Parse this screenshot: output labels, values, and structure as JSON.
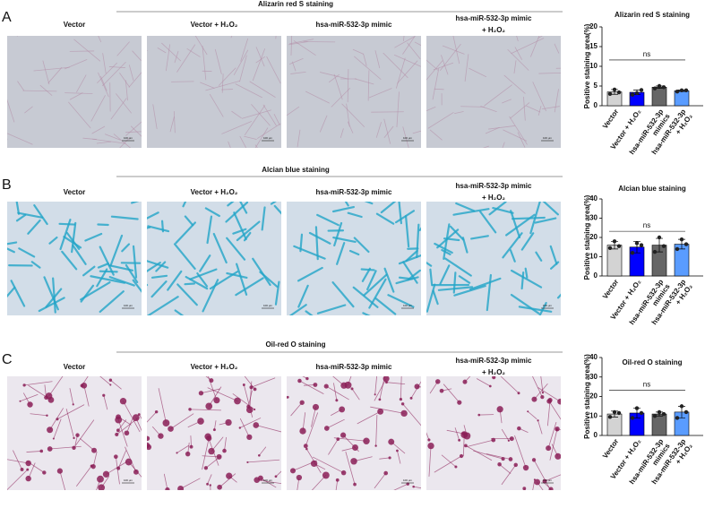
{
  "panels": [
    {
      "letter": "A",
      "title": "Alizarin red S staining",
      "columns": [
        "Vector",
        "Vector + H₂O₂",
        "hsa-miR-532-3p mimic",
        [
          "hsa-miR-532-3p mimic",
          "+ H₂O₂"
        ]
      ],
      "scale_bar": "100 μm"
    },
    {
      "letter": "B",
      "title": "Alcian blue staining",
      "columns": [
        "Vector",
        "Vector + H₂O₂",
        "hsa-miR-532-3p mimic",
        [
          "hsa-miR-532-3p mimic",
          "+ H₂O₂"
        ]
      ],
      "scale_bar": "100 μm"
    },
    {
      "letter": "C",
      "title": "Oil-red O staining",
      "columns": [
        "Vector",
        "Vector + H₂O₂",
        "hsa-miR-532-3p mimic",
        [
          "hsa-miR-532-3p mimic",
          "+ H₂O₂"
        ]
      ],
      "scale_bar": "100 μm"
    }
  ],
  "chart_data": [
    {
      "type": "bar",
      "title": "Alizarin red S staining",
      "ylabel": "Positive staining area(%)",
      "categories": [
        "Vector",
        "Vector + H₂O₂",
        [
          "hsa-miR-532-3p",
          "mimics"
        ],
        [
          "hsa-miR-532-3p",
          "+ H₂O₂"
        ]
      ],
      "colors": [
        "#d3d3d3",
        "#0000ff",
        "#666666",
        "#5a9cff"
      ],
      "values": [
        3.5,
        3.4,
        4.7,
        3.8
      ],
      "errors": [
        0.6,
        0.6,
        0.3,
        0.2
      ],
      "points": [
        [
          3,
          4.1,
          3.4
        ],
        [
          2.8,
          3.2,
          4
        ],
        [
          4.4,
          5,
          4.7
        ],
        [
          3.6,
          3.9,
          3.9
        ]
      ],
      "ylim": [
        0,
        20
      ],
      "yticks": [
        0,
        5,
        10,
        15,
        20
      ],
      "annotation": "ns"
    },
    {
      "type": "bar",
      "title": "Alcian blue staining",
      "ylabel": "Positive staining area(%)",
      "categories": [
        "Vector",
        "Vector + H₂O₂",
        [
          "hsa-miR-532-3p",
          "mimics"
        ],
        [
          "hsa-miR-532-3p",
          "+ H₂O₂"
        ]
      ],
      "colors": [
        "#d3d3d3",
        "#0000ff",
        "#666666",
        "#5a9cff"
      ],
      "values": [
        16,
        15,
        16,
        16.5
      ],
      "errors": [
        2,
        3,
        3.5,
        2.5
      ],
      "points": [
        [
          14.5,
          18,
          15.5
        ],
        [
          12,
          17,
          16
        ],
        [
          12.5,
          20,
          15.5
        ],
        [
          14,
          19,
          16.5
        ]
      ],
      "ylim": [
        0,
        40
      ],
      "yticks": [
        0,
        10,
        20,
        30,
        40
      ],
      "annotation": "ns"
    },
    {
      "type": "bar",
      "title": "Oil-red O staining",
      "ylabel": "Positive staining area(%)",
      "categories": [
        "Vector",
        "Vector + H₂O₂",
        [
          "hsa-miR-532-3p",
          "mimics"
        ],
        [
          "hsa-miR-532-3p",
          "+ H₂O₂"
        ]
      ],
      "colors": [
        "#d3d3d3",
        "#0000ff",
        "#666666",
        "#5a9cff"
      ],
      "values": [
        11,
        11.5,
        11,
        12
      ],
      "errors": [
        1.5,
        2.5,
        1,
        3
      ],
      "points": [
        [
          9.5,
          12,
          11.5
        ],
        [
          9,
          14,
          11.5
        ],
        [
          10,
          12,
          11
        ],
        [
          9,
          15,
          12
        ]
      ],
      "ylim": [
        0,
        40
      ],
      "yticks": [
        0,
        10,
        20,
        30,
        40
      ],
      "annotation": "ns"
    }
  ]
}
